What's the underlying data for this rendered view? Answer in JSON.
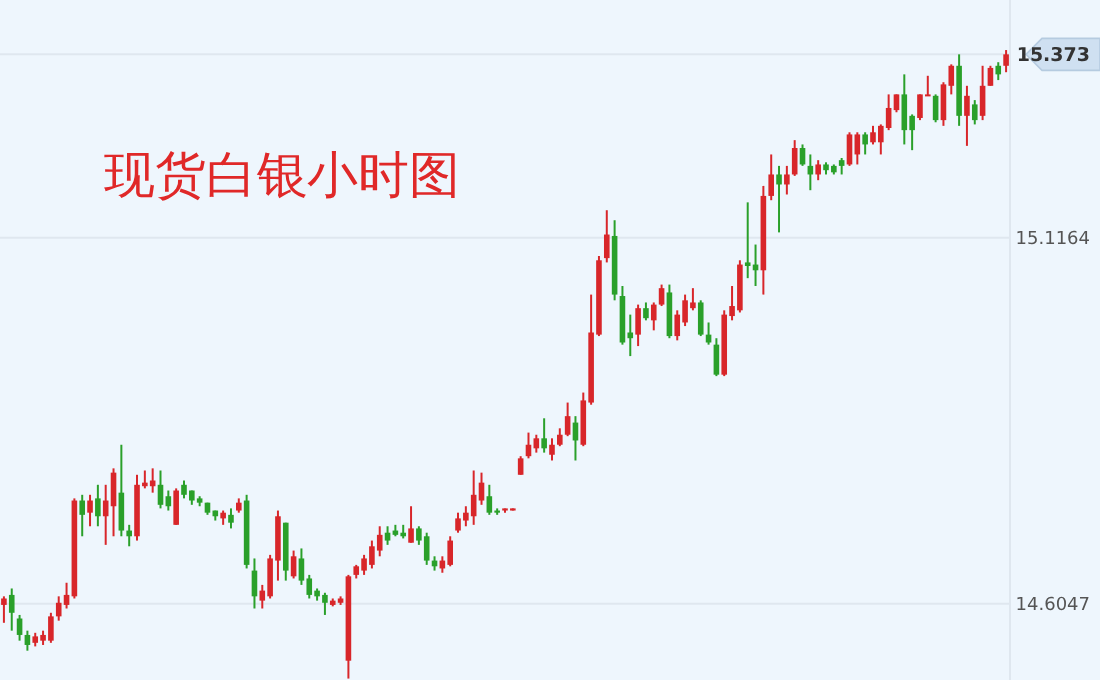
{
  "chart_data": {
    "type": "candlestick",
    "title": "现货白银小时图",
    "categories": [
      null,
      null,
      null,
      null,
      null,
      null,
      null,
      null,
      null,
      null,
      null,
      null,
      null,
      null,
      null,
      null,
      null,
      null,
      null,
      null,
      null,
      null,
      null,
      null,
      null,
      null,
      null,
      null,
      null,
      null,
      null,
      null,
      null,
      null,
      null,
      null,
      null,
      null,
      null,
      null,
      null,
      null,
      null,
      null,
      null,
      null,
      null,
      null,
      null,
      null,
      null,
      null,
      null,
      null,
      null,
      null,
      null,
      null,
      null,
      null,
      null,
      null,
      null,
      null,
      null,
      null,
      null,
      null,
      null,
      null,
      null,
      null,
      null,
      null,
      null,
      null,
      null,
      null,
      null,
      null,
      null,
      null,
      null,
      null,
      null,
      null,
      null,
      null,
      null,
      null,
      null,
      null,
      null,
      null,
      null,
      null,
      null,
      null,
      null,
      null,
      null,
      null,
      null,
      null,
      null,
      null,
      null,
      null,
      null,
      null,
      null,
      null,
      null,
      null,
      null,
      null,
      null,
      null,
      null,
      null,
      null,
      null,
      null,
      null,
      null,
      null,
      null,
      null,
      null
    ],
    "ohlc": [
      [
        14.603,
        14.615,
        14.578,
        14.612
      ],
      [
        14.617,
        14.626,
        14.567,
        14.592
      ],
      [
        14.584,
        14.589,
        14.553,
        14.561
      ],
      [
        14.561,
        14.567,
        14.539,
        14.547
      ],
      [
        14.55,
        14.564,
        14.545,
        14.559
      ],
      [
        14.553,
        14.567,
        14.547,
        14.561
      ],
      [
        14.553,
        14.592,
        14.55,
        14.587
      ],
      [
        14.587,
        14.615,
        14.581,
        14.606
      ],
      [
        14.603,
        14.634,
        14.598,
        14.617
      ],
      [
        14.615,
        14.752,
        14.612,
        14.749
      ],
      [
        14.749,
        14.757,
        14.699,
        14.729
      ],
      [
        14.732,
        14.757,
        14.713,
        14.749
      ],
      [
        14.752,
        14.771,
        14.713,
        14.727
      ],
      [
        14.727,
        14.771,
        14.687,
        14.749
      ],
      [
        14.741,
        14.794,
        14.699,
        14.788
      ],
      [
        14.76,
        14.827,
        14.699,
        14.707
      ],
      [
        14.707,
        14.715,
        14.685,
        14.699
      ],
      [
        14.699,
        14.785,
        14.693,
        14.771
      ],
      [
        14.769,
        14.791,
        14.766,
        14.774
      ],
      [
        14.769,
        14.794,
        14.76,
        14.777
      ],
      [
        14.771,
        14.791,
        14.738,
        14.743
      ],
      [
        14.755,
        14.763,
        14.735,
        14.741
      ],
      [
        14.715,
        14.766,
        14.715,
        14.763
      ],
      [
        14.771,
        14.777,
        14.752,
        14.757
      ],
      [
        14.763,
        14.763,
        14.743,
        14.749
      ],
      [
        14.752,
        14.755,
        14.741,
        14.746
      ],
      [
        14.746,
        14.746,
        14.729,
        14.732
      ],
      [
        14.735,
        14.735,
        14.721,
        14.727
      ],
      [
        14.724,
        14.735,
        14.715,
        14.732
      ],
      [
        14.729,
        14.738,
        14.71,
        14.718
      ],
      [
        14.735,
        14.752,
        14.732,
        14.746
      ],
      [
        14.749,
        14.757,
        14.654,
        14.659
      ],
      [
        14.651,
        14.668,
        14.598,
        14.615
      ],
      [
        14.609,
        14.631,
        14.598,
        14.623
      ],
      [
        14.615,
        14.673,
        14.612,
        14.668
      ],
      [
        14.665,
        14.735,
        14.637,
        14.727
      ],
      [
        14.718,
        14.718,
        14.637,
        14.651
      ],
      [
        14.643,
        14.679,
        14.64,
        14.671
      ],
      [
        14.668,
        14.682,
        14.631,
        14.637
      ],
      [
        14.64,
        14.645,
        14.612,
        14.617
      ],
      [
        14.623,
        14.626,
        14.609,
        14.615
      ],
      [
        14.617,
        14.62,
        14.589,
        14.606
      ],
      [
        14.603,
        14.612,
        14.601,
        14.609
      ],
      [
        14.606,
        14.615,
        14.603,
        14.612
      ],
      [
        14.525,
        14.645,
        14.5,
        14.643
      ],
      [
        14.645,
        14.659,
        14.64,
        14.657
      ],
      [
        14.651,
        14.673,
        14.645,
        14.668
      ],
      [
        14.659,
        14.693,
        14.654,
        14.685
      ],
      [
        14.679,
        14.713,
        14.671,
        14.701
      ],
      [
        14.704,
        14.713,
        14.687,
        14.693
      ],
      [
        14.707,
        14.715,
        14.699,
        14.701
      ],
      [
        14.704,
        14.715,
        14.696,
        14.699
      ],
      [
        14.69,
        14.741,
        14.69,
        14.71
      ],
      [
        14.71,
        14.713,
        14.687,
        14.693
      ],
      [
        14.699,
        14.704,
        14.659,
        14.665
      ],
      [
        14.665,
        14.671,
        14.651,
        14.657
      ],
      [
        14.654,
        14.671,
        14.648,
        14.665
      ],
      [
        14.659,
        14.699,
        14.657,
        14.693
      ],
      [
        14.707,
        14.732,
        14.704,
        14.724
      ],
      [
        14.721,
        14.741,
        14.713,
        14.732
      ],
      [
        14.727,
        14.791,
        14.715,
        14.757
      ],
      [
        14.749,
        14.788,
        14.743,
        14.774
      ],
      [
        14.755,
        14.771,
        14.729,
        14.732
      ],
      [
        14.735,
        14.738,
        14.729,
        14.732
      ],
      [
        14.735,
        14.738,
        14.732,
        14.738
      ],
      [
        14.735,
        14.738,
        14.735,
        14.738
      ],
      [
        14.785,
        14.811,
        14.785,
        14.808
      ],
      [
        14.811,
        14.844,
        14.808,
        14.827
      ],
      [
        14.822,
        14.841,
        14.816,
        14.836
      ],
      [
        14.836,
        14.864,
        14.816,
        14.822
      ],
      [
        14.813,
        14.836,
        14.805,
        14.827
      ],
      [
        14.827,
        14.85,
        14.825,
        14.841
      ],
      [
        14.841,
        14.886,
        14.839,
        14.867
      ],
      [
        14.858,
        14.867,
        14.805,
        14.833
      ],
      [
        14.827,
        14.9,
        14.825,
        14.889
      ],
      [
        14.886,
        15.037,
        14.883,
        14.984
      ],
      [
        14.981,
        15.091,
        14.979,
        15.085
      ],
      [
        15.088,
        15.155,
        15.082,
        15.121
      ],
      [
        15.119,
        15.141,
        15.029,
        15.037
      ],
      [
        15.035,
        15.049,
        14.967,
        14.97
      ],
      [
        14.984,
        15.009,
        14.951,
        14.976
      ],
      [
        14.981,
        15.023,
        14.965,
        15.018
      ],
      [
        15.018,
        15.026,
        15.001,
        15.004
      ],
      [
        15.001,
        15.026,
        14.987,
        15.023
      ],
      [
        15.023,
        15.051,
        15.021,
        15.046
      ],
      [
        15.04,
        15.051,
        14.976,
        14.979
      ],
      [
        14.979,
        15.015,
        14.973,
        15.009
      ],
      [
        14.998,
        15.037,
        14.993,
        15.029
      ],
      [
        15.018,
        15.046,
        15.015,
        15.026
      ],
      [
        15.026,
        15.029,
        14.979,
        14.981
      ],
      [
        14.981,
        14.998,
        14.967,
        14.97
      ],
      [
        14.967,
        14.976,
        14.923,
        14.925
      ],
      [
        14.925,
        15.015,
        14.923,
        15.009
      ],
      [
        15.007,
        15.049,
        15.001,
        15.021
      ],
      [
        15.015,
        15.085,
        15.012,
        15.079
      ],
      [
        15.082,
        15.166,
        15.06,
        15.077
      ],
      [
        15.079,
        15.107,
        15.049,
        15.071
      ],
      [
        15.071,
        15.189,
        15.037,
        15.175
      ],
      [
        15.175,
        15.233,
        15.169,
        15.205
      ],
      [
        15.205,
        15.217,
        15.124,
        15.191
      ],
      [
        15.191,
        15.217,
        15.177,
        15.205
      ],
      [
        15.205,
        15.253,
        15.203,
        15.242
      ],
      [
        15.242,
        15.247,
        15.217,
        15.219
      ],
      [
        15.217,
        15.233,
        15.183,
        15.205
      ],
      [
        15.205,
        15.225,
        15.197,
        15.219
      ],
      [
        15.219,
        15.222,
        15.205,
        15.211
      ],
      [
        15.217,
        15.219,
        15.205,
        15.208
      ],
      [
        15.225,
        15.228,
        15.205,
        15.217
      ],
      [
        15.219,
        15.264,
        15.217,
        15.261
      ],
      [
        15.233,
        15.264,
        15.219,
        15.261
      ],
      [
        15.261,
        15.264,
        15.233,
        15.247
      ],
      [
        15.25,
        15.273,
        15.247,
        15.264
      ],
      [
        15.25,
        15.275,
        15.233,
        15.273
      ],
      [
        15.27,
        15.317,
        15.267,
        15.298
      ],
      [
        15.295,
        15.317,
        15.292,
        15.317
      ],
      [
        15.317,
        15.345,
        15.247,
        15.267
      ],
      [
        15.287,
        15.289,
        15.239,
        15.267
      ],
      [
        15.284,
        15.317,
        15.281,
        15.317
      ],
      [
        15.315,
        15.343,
        15.315,
        15.317
      ],
      [
        15.315,
        15.317,
        15.278,
        15.281
      ],
      [
        15.281,
        15.334,
        15.273,
        15.331
      ],
      [
        15.329,
        15.359,
        15.317,
        15.357
      ],
      [
        15.357,
        15.373,
        15.273,
        15.287
      ],
      [
        15.287,
        15.329,
        15.245,
        15.315
      ],
      [
        15.303,
        15.309,
        15.275,
        15.281
      ],
      [
        15.287,
        15.357,
        15.281,
        15.329
      ],
      [
        15.329,
        15.357,
        15.329,
        15.354
      ],
      [
        15.357,
        15.362,
        15.337,
        15.345
      ],
      [
        15.357,
        15.379,
        15.348,
        15.373
      ]
    ],
    "ylim": [
      14.498,
      15.449
    ],
    "yticks": [
      14.6047,
      15.1164
    ],
    "grid": "y",
    "ref_lines": [
      {
        "axis": "y",
        "value": 15.373,
        "label": "15.373"
      }
    ]
  }
}
